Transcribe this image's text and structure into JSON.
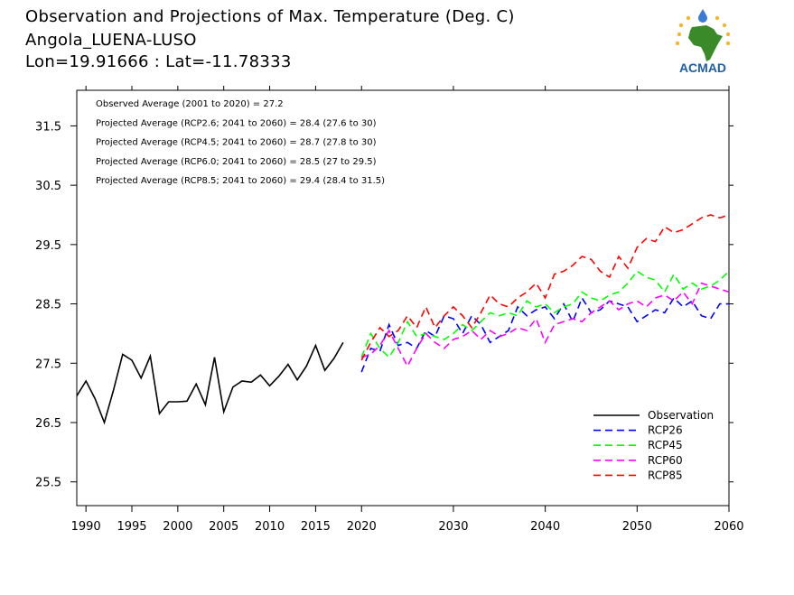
{
  "title": {
    "line1": "Observation and Projections of Max. Temperature (Deg. C)",
    "line2": "Angola_LUENA-LUSO",
    "line3": "Lon=19.91666 : Lat=-11.78333"
  },
  "logo": {
    "text": "ACMAD",
    "icon": "africa-map-logo-icon",
    "color": "#1f5fa8",
    "accent": "#f2b632"
  },
  "chart_data": {
    "type": "line",
    "xlim": [
      1989,
      2060
    ],
    "ylim": [
      25.1,
      32.1
    ],
    "x_ticks": [
      {
        "v": 1990,
        "label": "1990"
      },
      {
        "v": 1995,
        "label": "1995"
      },
      {
        "v": 2000,
        "label": "2000"
      },
      {
        "v": 2005,
        "label": "2005"
      },
      {
        "v": 2010,
        "label": "2010"
      },
      {
        "v": 2015,
        "label": "2015"
      },
      {
        "v": 2020,
        "label": "2020"
      },
      {
        "v": 2030,
        "label": "2030"
      },
      {
        "v": 2040,
        "label": "2040"
      },
      {
        "v": 2050,
        "label": "2050"
      },
      {
        "v": 2060,
        "label": "2060"
      }
    ],
    "y_ticks": [
      {
        "v": 25.5,
        "label": "25.5"
      },
      {
        "v": 26.5,
        "label": "26.5"
      },
      {
        "v": 27.5,
        "label": "27.5"
      },
      {
        "v": 28.5,
        "label": "28.5"
      },
      {
        "v": 29.5,
        "label": "29.5"
      },
      {
        "v": 30.5,
        "label": "30.5"
      },
      {
        "v": 31.5,
        "label": "31.5"
      }
    ],
    "annotations": [
      "Observed Average (2001 to 2020) = 27.2",
      "Projected Average (RCP2.6; 2041 to 2060) = 28.4 (27.6 to 30)",
      "Projected Average (RCP4.5; 2041 to 2060) = 28.7 (27.8 to 30)",
      "Projected Average (RCP6.0; 2041 to 2060) = 28.5 (27 to 29.5)",
      "Projected Average (RCP8.5; 2041 to 2060) = 29.4 (28.4 to 31.5)"
    ],
    "legend_position": "bottom-right",
    "series": [
      {
        "name": "Observation",
        "color": "#000000",
        "dashed": false,
        "x_start": 1989,
        "values": [
          26.95,
          27.2,
          26.9,
          26.5,
          27.05,
          27.65,
          27.55,
          27.25,
          27.62,
          26.65,
          26.85,
          26.85,
          26.86,
          27.15,
          26.8,
          27.6,
          26.68,
          27.1,
          27.2,
          27.18,
          27.3,
          27.12,
          27.28,
          27.48,
          27.22,
          27.45,
          27.8,
          27.38,
          27.58,
          27.85
        ]
      },
      {
        "name": "RCP26",
        "color": "#0000ff",
        "dashed": true,
        "x_start": 2020,
        "values": [
          27.35,
          27.75,
          27.7,
          28.15,
          27.8,
          27.85,
          27.75,
          28.05,
          27.95,
          28.3,
          28.25,
          28.0,
          28.3,
          28.15,
          27.85,
          27.95,
          28.05,
          28.45,
          28.3,
          28.4,
          28.45,
          28.25,
          28.5,
          28.2,
          28.6,
          28.35,
          28.4,
          28.55,
          28.5,
          28.45,
          28.2,
          28.3,
          28.4,
          28.35,
          28.6,
          28.45,
          28.55,
          28.3,
          28.25,
          28.5,
          28.5
        ]
      },
      {
        "name": "RCP45",
        "color": "#00ff00",
        "dashed": true,
        "x_start": 2020,
        "values": [
          27.6,
          28.0,
          27.75,
          27.6,
          27.85,
          28.2,
          27.95,
          28.0,
          27.95,
          27.9,
          28.0,
          28.15,
          28.05,
          28.2,
          28.35,
          28.3,
          28.35,
          28.3,
          28.55,
          28.45,
          28.5,
          28.35,
          28.45,
          28.5,
          28.7,
          28.6,
          28.55,
          28.65,
          28.7,
          28.85,
          29.05,
          28.95,
          28.9,
          28.7,
          29.0,
          28.75,
          28.85,
          28.75,
          28.8,
          28.9,
          29.05
        ]
      },
      {
        "name": "RCP60",
        "color": "#ff00ff",
        "dashed": true,
        "x_start": 2020,
        "values": [
          27.6,
          27.65,
          27.8,
          28.05,
          27.75,
          27.45,
          27.75,
          28.0,
          27.85,
          27.75,
          27.9,
          27.95,
          28.05,
          27.9,
          28.05,
          27.95,
          28.0,
          28.1,
          28.05,
          28.25,
          27.85,
          28.15,
          28.2,
          28.25,
          28.2,
          28.35,
          28.45,
          28.55,
          28.4,
          28.5,
          28.55,
          28.45,
          28.6,
          28.65,
          28.55,
          28.7,
          28.5,
          28.85,
          28.8,
          28.75,
          28.7
        ]
      },
      {
        "name": "RCP85",
        "color": "#ff0000",
        "dashed": true,
        "x_start": 2020,
        "values": [
          27.55,
          27.85,
          28.1,
          27.95,
          28.05,
          28.3,
          28.1,
          28.45,
          28.1,
          28.3,
          28.45,
          28.3,
          28.1,
          28.35,
          28.65,
          28.5,
          28.45,
          28.6,
          28.7,
          28.85,
          28.6,
          29.0,
          29.05,
          29.15,
          29.3,
          29.25,
          29.05,
          28.95,
          29.3,
          29.1,
          29.45,
          29.6,
          29.55,
          29.8,
          29.7,
          29.75,
          29.85,
          29.95,
          30.0,
          29.95,
          30.0
        ]
      }
    ]
  }
}
